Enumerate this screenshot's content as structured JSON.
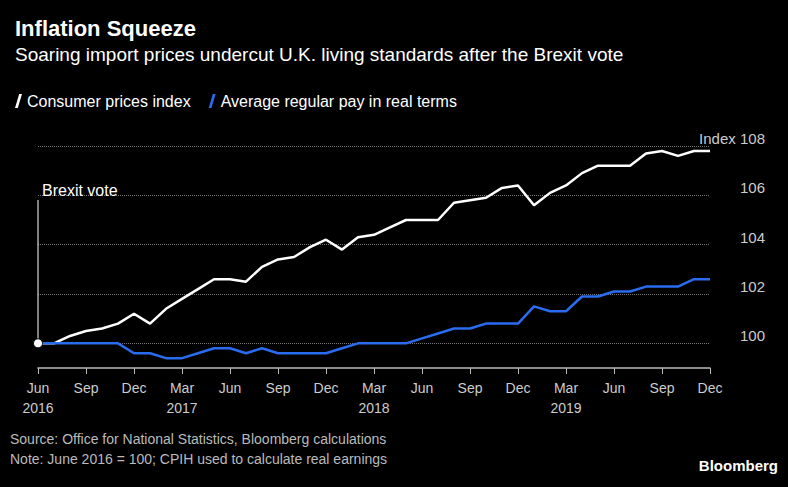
{
  "chart_data": {
    "type": "line",
    "title": "Inflation Squeeze",
    "subtitle": "Soaring import prices undercut U.K. living standards after the Brexit vote",
    "categories": [
      "Jun\n2016",
      null,
      null,
      "Sep",
      null,
      null,
      "Dec",
      null,
      null,
      "Mar\n2017",
      null,
      null,
      "Jun",
      null,
      null,
      "Sep",
      null,
      null,
      "Dec",
      null,
      null,
      "Mar\n2018",
      null,
      null,
      "Jun",
      null,
      null,
      "Sep",
      null,
      null,
      "Dec",
      null,
      null,
      "Mar\n2019",
      null,
      null,
      "Jun",
      null,
      null,
      "Sep",
      null,
      null,
      "Dec"
    ],
    "series": [
      {
        "name": "Consumer prices index",
        "color": "#ffffff",
        "values": [
          100,
          100.0,
          100.3,
          100.5,
          100.6,
          100.8,
          101.2,
          100.8,
          101.4,
          101.8,
          102.2,
          102.6,
          102.6,
          102.5,
          103.1,
          103.4,
          103.5,
          103.9,
          104.2,
          103.8,
          104.3,
          104.4,
          104.7,
          105.0,
          105.0,
          105.0,
          105.7,
          105.8,
          105.9,
          106.3,
          106.4,
          105.6,
          106.1,
          106.4,
          106.9,
          107.2,
          107.2,
          107.2,
          107.7,
          107.8,
          107.6,
          107.8,
          107.8
        ]
      },
      {
        "name": "Average regular pay in real terms",
        "color": "#2a6cf0",
        "values": [
          100,
          100,
          100,
          100,
          100,
          100,
          99.6,
          99.6,
          99.4,
          99.4,
          99.6,
          99.8,
          99.8,
          99.6,
          99.8,
          99.6,
          99.6,
          99.6,
          99.6,
          99.8,
          100.0,
          100.0,
          100.0,
          100.0,
          100.2,
          100.4,
          100.6,
          100.6,
          100.8,
          100.8,
          100.8,
          101.5,
          101.3,
          101.3,
          101.9,
          101.9,
          102.1,
          102.1,
          102.3,
          102.3,
          102.3,
          102.6,
          102.6
        ]
      }
    ],
    "ylim": [
      99,
      108
    ],
    "yticks": [
      100,
      102,
      104,
      106,
      {
        "value": 108,
        "label": "Index 108"
      }
    ],
    "grid": true,
    "legend": "top-left",
    "annotations": [
      {
        "text": "Brexit vote",
        "x": "Jun\n2016",
        "y": 100
      }
    ],
    "source": "Source: Office for National Statistics, Bloomberg calculations",
    "note": "Note: June 2016 = 100; CPIH used to calculate real earnings",
    "credit": "Bloomberg"
  }
}
